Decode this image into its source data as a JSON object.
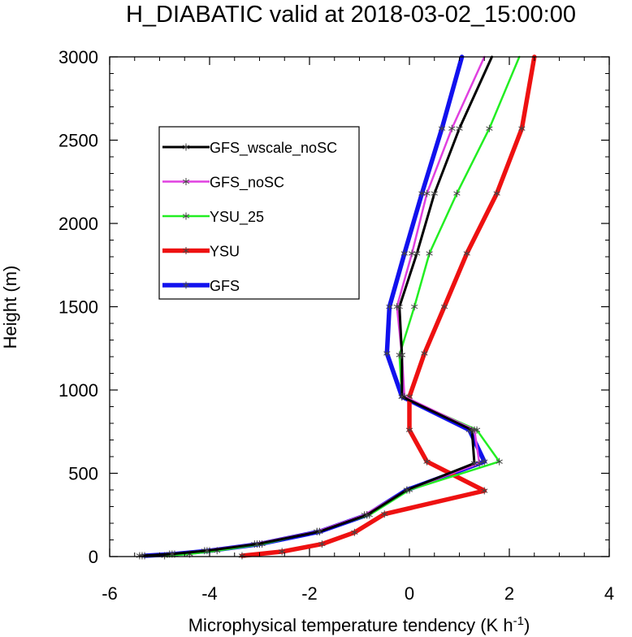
{
  "chart_data": {
    "type": "line",
    "title": "H_DIABATIC valid at 2018-03-02_15:00:00",
    "xlabel": "Microphysical temperature tendency (K h",
    "xlabel_sup": "-1",
    "xlabel_suffix": ")",
    "ylabel": "Height (m)",
    "xlim": [
      -6,
      4
    ],
    "ylim": [
      0,
      3000
    ],
    "xticks": [
      -6,
      -4,
      -2,
      0,
      2,
      4
    ],
    "yticks": [
      0,
      500,
      1000,
      1500,
      2000,
      2500,
      3000
    ],
    "legend_position": "upper-left",
    "grid": false,
    "series": [
      {
        "name": "GFS_wscale_noSC",
        "color": "#000000",
        "points": [
          [
            -5.35,
            5
          ],
          [
            -4.75,
            15
          ],
          [
            -4.05,
            35
          ],
          [
            -3.05,
            75
          ],
          [
            -1.8,
            150
          ],
          [
            -0.85,
            250
          ],
          [
            -0.05,
            400
          ],
          [
            1.3,
            560
          ],
          [
            1.25,
            760
          ],
          [
            -0.15,
            960
          ],
          [
            -0.15,
            1210
          ],
          [
            -0.2,
            1500
          ],
          [
            0.15,
            1820
          ],
          [
            0.5,
            2180
          ],
          [
            1.0,
            2570
          ],
          [
            1.65,
            3000
          ]
        ]
      },
      {
        "name": "GFS_noSC",
        "color": "#e040e0",
        "points": [
          [
            -5.4,
            5
          ],
          [
            -4.8,
            15
          ],
          [
            -4.1,
            35
          ],
          [
            -3.1,
            75
          ],
          [
            -1.85,
            150
          ],
          [
            -0.9,
            250
          ],
          [
            -0.05,
            400
          ],
          [
            1.4,
            560
          ],
          [
            1.3,
            760
          ],
          [
            -0.1,
            960
          ],
          [
            -0.15,
            1210
          ],
          [
            -0.25,
            1500
          ],
          [
            0.05,
            1820
          ],
          [
            0.35,
            2180
          ],
          [
            0.85,
            2570
          ],
          [
            1.5,
            3000
          ]
        ]
      },
      {
        "name": "YSU_25",
        "color": "#22ee22",
        "points": [
          [
            -4.9,
            5
          ],
          [
            -4.4,
            15
          ],
          [
            -3.85,
            35
          ],
          [
            -2.95,
            75
          ],
          [
            -1.85,
            150
          ],
          [
            -0.8,
            250
          ],
          [
            0.0,
            400
          ],
          [
            1.8,
            570
          ],
          [
            1.35,
            760
          ],
          [
            -0.15,
            960
          ],
          [
            -0.2,
            1210
          ],
          [
            0.1,
            1500
          ],
          [
            0.4,
            1820
          ],
          [
            0.95,
            2180
          ],
          [
            1.6,
            2570
          ],
          [
            2.2,
            3000
          ]
        ]
      },
      {
        "name": "YSU",
        "color": "#ee1111",
        "points": [
          [
            -3.35,
            5
          ],
          [
            -2.55,
            30
          ],
          [
            -1.75,
            75
          ],
          [
            -1.1,
            145
          ],
          [
            -0.5,
            255
          ],
          [
            1.5,
            395
          ],
          [
            0.35,
            570
          ],
          [
            0.0,
            760
          ],
          [
            0.0,
            960
          ],
          [
            0.3,
            1220
          ],
          [
            0.7,
            1500
          ],
          [
            1.15,
            1820
          ],
          [
            1.75,
            2180
          ],
          [
            2.25,
            2570
          ],
          [
            2.5,
            3000
          ]
        ]
      },
      {
        "name": "GFS",
        "color": "#1111ee",
        "points": [
          [
            -5.3,
            5
          ],
          [
            -4.7,
            15
          ],
          [
            -4.0,
            35
          ],
          [
            -3.0,
            75
          ],
          [
            -1.8,
            150
          ],
          [
            -0.85,
            250
          ],
          [
            -0.05,
            400
          ],
          [
            1.5,
            570
          ],
          [
            1.2,
            760
          ],
          [
            -0.15,
            960
          ],
          [
            -0.45,
            1220
          ],
          [
            -0.4,
            1500
          ],
          [
            -0.1,
            1820
          ],
          [
            0.25,
            2180
          ],
          [
            0.65,
            2570
          ],
          [
            1.05,
            3000
          ]
        ]
      }
    ]
  }
}
